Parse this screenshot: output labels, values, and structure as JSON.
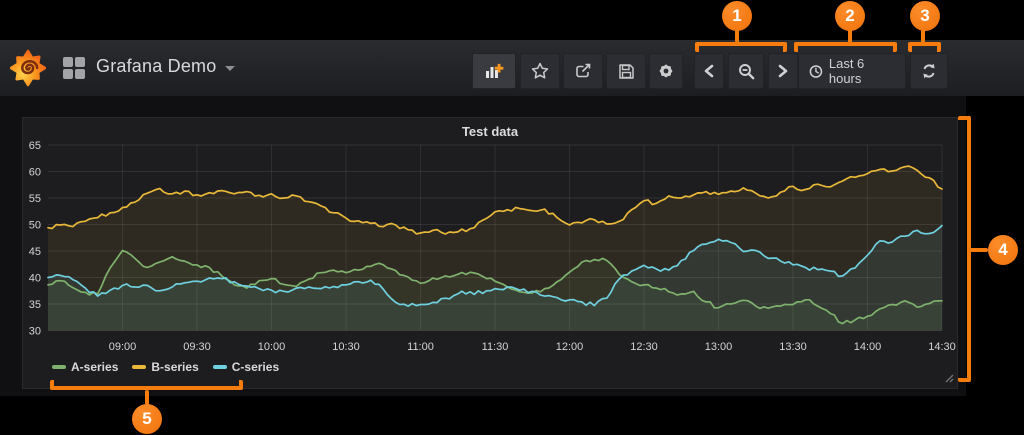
{
  "navbar": {
    "title": "Grafana Demo",
    "icons": {
      "brand": "grafana-logo",
      "dashboards": "grid",
      "toolbar": [
        "add-panel",
        "star",
        "share",
        "save",
        "settings"
      ],
      "nav": [
        "chevron-left",
        "zoom-out",
        "chevron-right"
      ],
      "time": "clock",
      "refresh": "refresh"
    }
  },
  "timepicker": {
    "label": "Last 6 hours"
  },
  "panel": {
    "title": "Test data"
  },
  "callouts": {
    "labels": [
      "1",
      "2",
      "3",
      "4",
      "5"
    ]
  },
  "colors": {
    "annotation_orange": "#f57c0d",
    "series_green": "#7EB26D",
    "series_yellow": "#EAB839",
    "series_cyan": "#6ED0E0"
  },
  "chart_data": {
    "type": "line",
    "title": "Test data",
    "x_start": "08:30",
    "x_end": "14:30",
    "x_step_minutes": 5,
    "x_tick_labels": [
      "09:00",
      "09:30",
      "10:00",
      "10:30",
      "11:00",
      "11:30",
      "12:00",
      "12:30",
      "13:00",
      "13:30",
      "14:00",
      "14:30"
    ],
    "y_ticks": [
      30,
      35,
      40,
      45,
      50,
      55,
      60,
      65
    ],
    "ylim": [
      30,
      65
    ],
    "grid": true,
    "legend_position": "bottom-left",
    "fill_opacity": 0.085,
    "series": [
      {
        "name": "A-series",
        "color": "#7EB26D",
        "values": [
          38.6,
          39.4,
          38.1,
          37.2,
          36.9,
          41.8,
          45.1,
          43.6,
          41.9,
          42.9,
          43.9,
          43.1,
          42.4,
          41.9,
          40.3,
          38.6,
          38.0,
          39.4,
          39.8,
          38.7,
          38.3,
          39.7,
          40.9,
          41.4,
          40.9,
          41.4,
          42.1,
          42.4,
          41.3,
          40.1,
          38.9,
          39.9,
          40.3,
          40.6,
          41.0,
          40.2,
          39.3,
          38.2,
          37.3,
          37.1,
          37.9,
          39.2,
          41.0,
          42.9,
          43.4,
          43.2,
          40.6,
          39.2,
          38.6,
          38.0,
          37.3,
          36.9,
          37.4,
          35.4,
          34.3,
          35.0,
          35.7,
          34.6,
          34.2,
          34.6,
          34.9,
          35.8,
          34.6,
          33.2,
          31.3,
          32.0,
          32.7,
          34.1,
          34.9,
          35.6,
          34.4,
          35.1,
          35.6
        ]
      },
      {
        "name": "B-series",
        "color": "#EAB839",
        "values": [
          49.4,
          49.9,
          49.6,
          50.6,
          51.3,
          52.2,
          53.2,
          54.2,
          55.9,
          56.8,
          55.8,
          56.3,
          55.6,
          56.0,
          56.4,
          55.8,
          56.2,
          55.5,
          55.8,
          55.0,
          55.4,
          54.3,
          53.5,
          52.2,
          51.2,
          50.7,
          50.2,
          49.6,
          49.9,
          49.0,
          48.4,
          48.9,
          48.2,
          48.6,
          49.2,
          50.8,
          52.4,
          52.8,
          53.0,
          52.6,
          52.9,
          51.3,
          49.9,
          50.3,
          50.9,
          50.1,
          50.6,
          52.8,
          54.5,
          54.0,
          55.4,
          55.0,
          55.6,
          56.2,
          55.7,
          56.3,
          56.9,
          55.9,
          55.0,
          56.1,
          57.2,
          56.6,
          57.6,
          57.1,
          58.2,
          58.9,
          59.6,
          60.4,
          60.1,
          60.9,
          60.2,
          58.8,
          56.7
        ]
      },
      {
        "name": "C-series",
        "color": "#6ED0E0",
        "values": [
          40.0,
          40.4,
          39.6,
          38.0,
          36.5,
          37.6,
          38.5,
          38.2,
          38.5,
          37.5,
          38.2,
          39.0,
          39.3,
          39.9,
          39.8,
          39.2,
          38.4,
          37.9,
          37.6,
          37.4,
          38.0,
          38.2,
          37.9,
          38.3,
          38.6,
          39.2,
          39.5,
          37.8,
          35.3,
          34.6,
          34.9,
          35.3,
          36.1,
          36.9,
          37.3,
          37.0,
          37.9,
          38.2,
          37.6,
          37.4,
          36.5,
          36.2,
          35.8,
          35.4,
          34.7,
          36.1,
          39.7,
          41.2,
          42.3,
          41.6,
          41.4,
          43.2,
          45.1,
          46.3,
          47.2,
          46.6,
          44.9,
          45.1,
          43.6,
          43.1,
          42.4,
          41.9,
          41.5,
          41.2,
          40.3,
          41.8,
          44.2,
          46.9,
          46.7,
          47.8,
          48.9,
          48.3,
          49.8
        ]
      }
    ]
  }
}
